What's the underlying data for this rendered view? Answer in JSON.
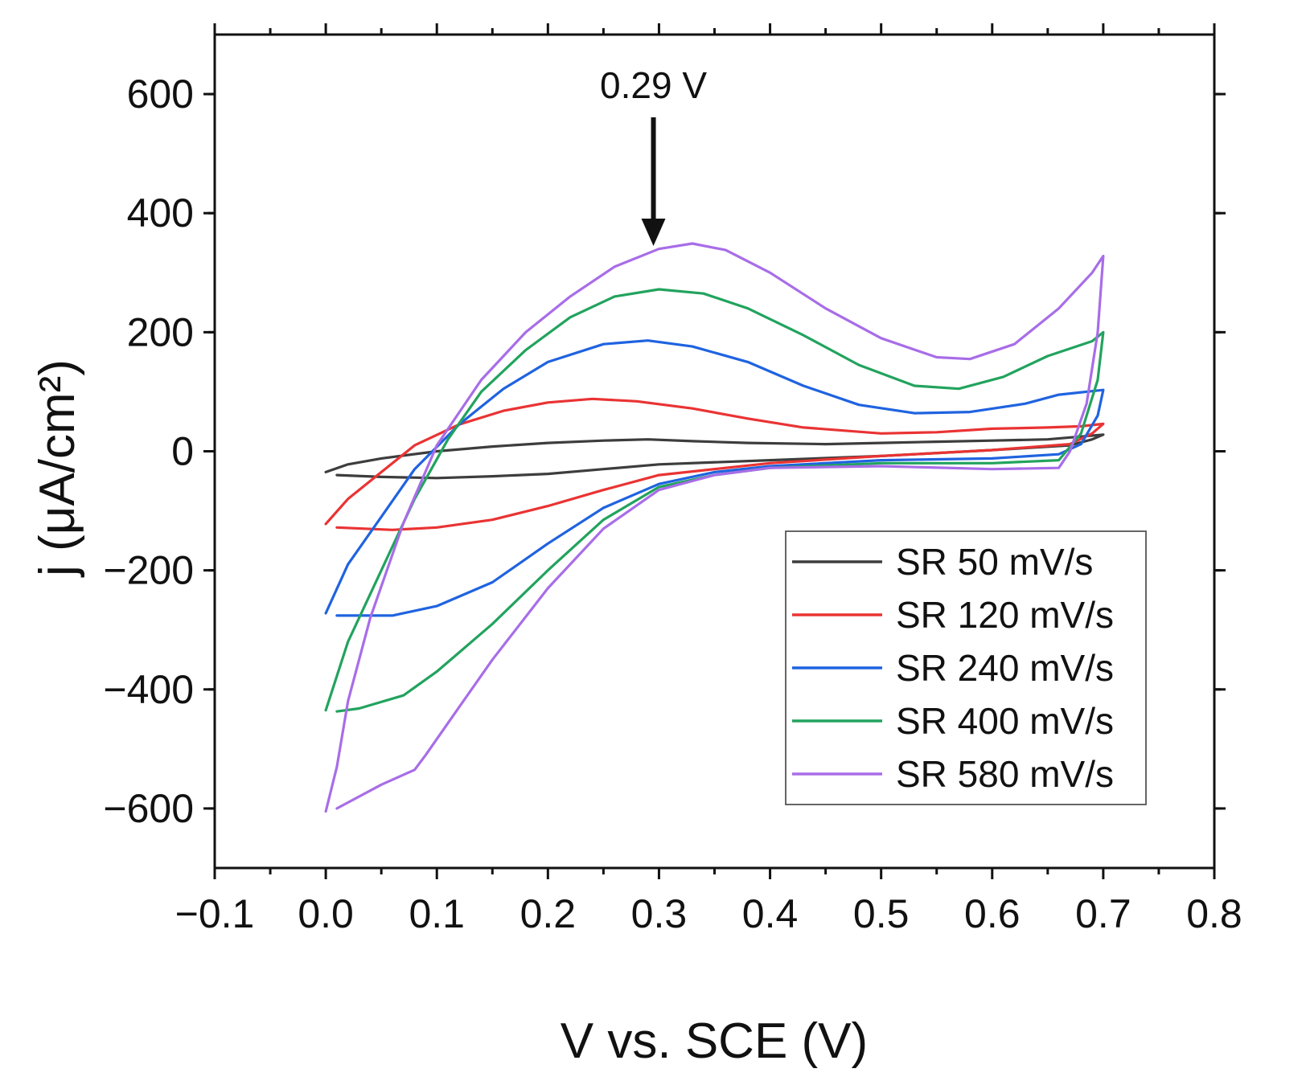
{
  "chart_data": {
    "type": "line",
    "title": "",
    "xlabel": "V vs. SCE (V)",
    "ylabel": "j (μA/cm²)",
    "xlim": [
      -0.1,
      0.8
    ],
    "ylim": [
      -700,
      700
    ],
    "xticks": [
      -0.1,
      0.0,
      0.1,
      0.2,
      0.3,
      0.4,
      0.5,
      0.6,
      0.7,
      0.8
    ],
    "xtick_labels": [
      "−0.1",
      "0.0",
      "0.1",
      "0.2",
      "0.3",
      "0.4",
      "0.5",
      "0.6",
      "0.7",
      "0.8"
    ],
    "yticks": [
      600,
      400,
      200,
      0,
      -200,
      -400,
      -600
    ],
    "ytick_labels": [
      "600",
      "400",
      "200",
      "0",
      "−200",
      "−400",
      "−600"
    ],
    "legend_position": "lower-right",
    "annotation": {
      "text": "0.29 V",
      "x": 0.295,
      "y": 345
    },
    "series": [
      {
        "name": "SR 50 mV/s",
        "color": "#3d3d3d",
        "points": [
          [
            0.0,
            -35
          ],
          [
            0.02,
            -22
          ],
          [
            0.05,
            -12
          ],
          [
            0.1,
            0
          ],
          [
            0.15,
            8
          ],
          [
            0.2,
            14
          ],
          [
            0.25,
            18
          ],
          [
            0.29,
            20
          ],
          [
            0.33,
            17
          ],
          [
            0.38,
            14
          ],
          [
            0.45,
            12
          ],
          [
            0.5,
            14
          ],
          [
            0.55,
            16
          ],
          [
            0.6,
            18
          ],
          [
            0.65,
            20
          ],
          [
            0.7,
            28
          ],
          [
            0.69,
            20
          ],
          [
            0.67,
            10
          ],
          [
            0.6,
            2
          ],
          [
            0.5,
            -8
          ],
          [
            0.4,
            -15
          ],
          [
            0.3,
            -22
          ],
          [
            0.25,
            -30
          ],
          [
            0.2,
            -38
          ],
          [
            0.15,
            -42
          ],
          [
            0.1,
            -45
          ],
          [
            0.05,
            -43
          ],
          [
            0.01,
            -40
          ]
        ]
      },
      {
        "name": "SR 120 mV/s",
        "color": "#ea3333",
        "points": [
          [
            0.0,
            -122
          ],
          [
            0.02,
            -80
          ],
          [
            0.05,
            -35
          ],
          [
            0.08,
            10
          ],
          [
            0.12,
            45
          ],
          [
            0.16,
            68
          ],
          [
            0.2,
            82
          ],
          [
            0.24,
            88
          ],
          [
            0.28,
            84
          ],
          [
            0.33,
            72
          ],
          [
            0.38,
            55
          ],
          [
            0.43,
            40
          ],
          [
            0.5,
            30
          ],
          [
            0.55,
            32
          ],
          [
            0.6,
            38
          ],
          [
            0.65,
            40
          ],
          [
            0.68,
            42
          ],
          [
            0.7,
            46
          ],
          [
            0.69,
            30
          ],
          [
            0.67,
            12
          ],
          [
            0.6,
            2
          ],
          [
            0.5,
            -8
          ],
          [
            0.4,
            -20
          ],
          [
            0.3,
            -40
          ],
          [
            0.25,
            -65
          ],
          [
            0.2,
            -92
          ],
          [
            0.15,
            -115
          ],
          [
            0.1,
            -128
          ],
          [
            0.06,
            -132
          ],
          [
            0.01,
            -128
          ]
        ]
      },
      {
        "name": "SR 240 mV/s",
        "color": "#1f63e0",
        "points": [
          [
            0.0,
            -272
          ],
          [
            0.02,
            -190
          ],
          [
            0.05,
            -110
          ],
          [
            0.08,
            -30
          ],
          [
            0.12,
            45
          ],
          [
            0.16,
            105
          ],
          [
            0.2,
            150
          ],
          [
            0.25,
            180
          ],
          [
            0.29,
            186
          ],
          [
            0.33,
            176
          ],
          [
            0.38,
            150
          ],
          [
            0.43,
            110
          ],
          [
            0.48,
            78
          ],
          [
            0.53,
            64
          ],
          [
            0.58,
            66
          ],
          [
            0.63,
            80
          ],
          [
            0.66,
            95
          ],
          [
            0.7,
            103
          ],
          [
            0.695,
            60
          ],
          [
            0.68,
            12
          ],
          [
            0.66,
            -5
          ],
          [
            0.6,
            -12
          ],
          [
            0.5,
            -15
          ],
          [
            0.4,
            -25
          ],
          [
            0.35,
            -35
          ],
          [
            0.3,
            -55
          ],
          [
            0.25,
            -95
          ],
          [
            0.2,
            -155
          ],
          [
            0.15,
            -220
          ],
          [
            0.1,
            -260
          ],
          [
            0.06,
            -276
          ],
          [
            0.01,
            -276
          ]
        ]
      },
      {
        "name": "SR 400 mV/s",
        "color": "#22a35e",
        "points": [
          [
            0.0,
            -435
          ],
          [
            0.02,
            -320
          ],
          [
            0.05,
            -200
          ],
          [
            0.08,
            -80
          ],
          [
            0.11,
            20
          ],
          [
            0.14,
            100
          ],
          [
            0.18,
            170
          ],
          [
            0.22,
            225
          ],
          [
            0.26,
            260
          ],
          [
            0.3,
            272
          ],
          [
            0.34,
            265
          ],
          [
            0.38,
            240
          ],
          [
            0.43,
            195
          ],
          [
            0.48,
            145
          ],
          [
            0.53,
            110
          ],
          [
            0.57,
            105
          ],
          [
            0.61,
            125
          ],
          [
            0.65,
            160
          ],
          [
            0.69,
            185
          ],
          [
            0.7,
            200
          ],
          [
            0.695,
            120
          ],
          [
            0.68,
            30
          ],
          [
            0.66,
            -15
          ],
          [
            0.6,
            -20
          ],
          [
            0.5,
            -20
          ],
          [
            0.4,
            -28
          ],
          [
            0.35,
            -40
          ],
          [
            0.3,
            -60
          ],
          [
            0.25,
            -115
          ],
          [
            0.2,
            -200
          ],
          [
            0.15,
            -290
          ],
          [
            0.1,
            -370
          ],
          [
            0.07,
            -410
          ],
          [
            0.03,
            -432
          ],
          [
            0.01,
            -437
          ]
        ]
      },
      {
        "name": "SR 580 mV/s",
        "color": "#a86de8",
        "points": [
          [
            0.0,
            -605
          ],
          [
            0.01,
            -530
          ],
          [
            0.02,
            -420
          ],
          [
            0.04,
            -280
          ],
          [
            0.07,
            -120
          ],
          [
            0.1,
            10
          ],
          [
            0.14,
            120
          ],
          [
            0.18,
            200
          ],
          [
            0.22,
            260
          ],
          [
            0.26,
            310
          ],
          [
            0.3,
            340
          ],
          [
            0.33,
            349
          ],
          [
            0.36,
            338
          ],
          [
            0.4,
            300
          ],
          [
            0.45,
            240
          ],
          [
            0.5,
            190
          ],
          [
            0.55,
            158
          ],
          [
            0.58,
            155
          ],
          [
            0.62,
            180
          ],
          [
            0.66,
            240
          ],
          [
            0.69,
            300
          ],
          [
            0.7,
            328
          ],
          [
            0.695,
            200
          ],
          [
            0.685,
            80
          ],
          [
            0.67,
            0
          ],
          [
            0.66,
            -28
          ],
          [
            0.6,
            -30
          ],
          [
            0.5,
            -25
          ],
          [
            0.4,
            -28
          ],
          [
            0.35,
            -40
          ],
          [
            0.3,
            -65
          ],
          [
            0.25,
            -130
          ],
          [
            0.2,
            -230
          ],
          [
            0.15,
            -350
          ],
          [
            0.12,
            -430
          ],
          [
            0.09,
            -510
          ],
          [
            0.08,
            -535
          ],
          [
            0.05,
            -560
          ],
          [
            0.01,
            -600
          ]
        ]
      }
    ]
  }
}
